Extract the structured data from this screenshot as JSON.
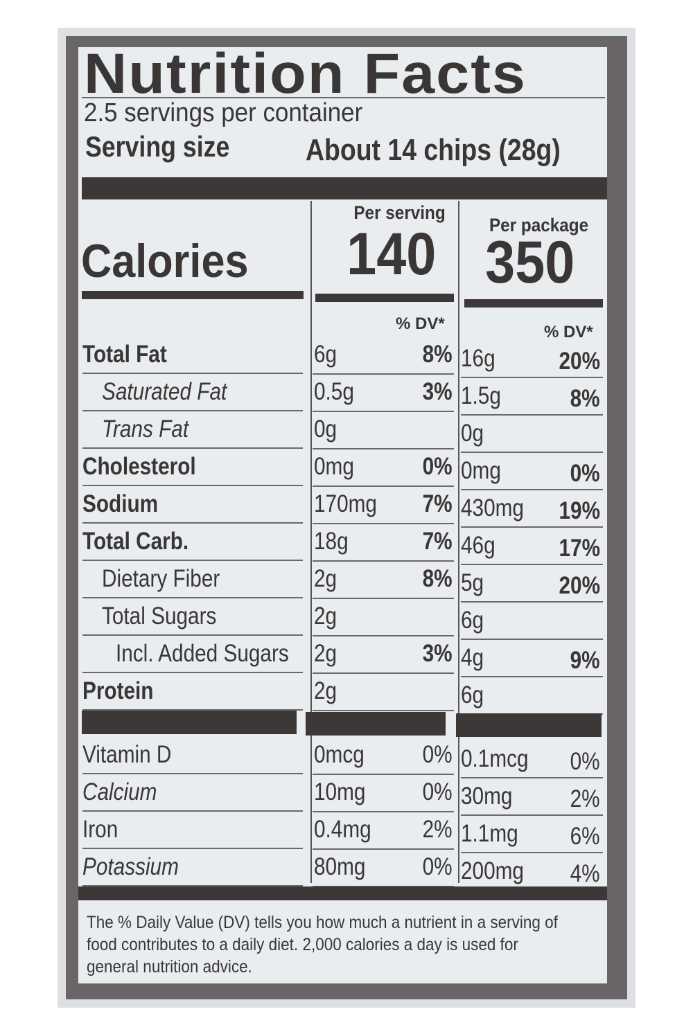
{
  "title": "Nutrition Facts",
  "servings_per_container": "2.5 servings per container",
  "serving_size_label": "Serving size",
  "serving_size_value": "About 14 chips (28g)",
  "columns": {
    "per_serving": "Per serving",
    "per_package": "Per package"
  },
  "calories": {
    "label": "Calories",
    "per_serving": "140",
    "per_package": "350"
  },
  "dv_header": "% DV*",
  "nutrients": [
    {
      "name": "Total Fat",
      "style": "bold",
      "indent": 0,
      "serving_amount": "6g",
      "serving_dv": "8%",
      "package_amount": "16g",
      "package_dv": "20%"
    },
    {
      "name": "Saturated Fat",
      "style": "italic",
      "indent": 1,
      "serving_amount": "0.5g",
      "serving_dv": "3%",
      "package_amount": "1.5g",
      "package_dv": "8%"
    },
    {
      "name": "Trans Fat",
      "style": "italic",
      "indent": 1,
      "serving_amount": "0g",
      "serving_dv": "",
      "package_amount": "0g",
      "package_dv": ""
    },
    {
      "name": "Cholesterol",
      "style": "bold",
      "indent": 0,
      "serving_amount": "0mg",
      "serving_dv": "0%",
      "package_amount": "0mg",
      "package_dv": "0%"
    },
    {
      "name": "Sodium",
      "style": "bold",
      "indent": 0,
      "serving_amount": "170mg",
      "serving_dv": "7%",
      "package_amount": "430mg",
      "package_dv": "19%"
    },
    {
      "name": "Total Carb.",
      "style": "bold",
      "indent": 0,
      "serving_amount": "18g",
      "serving_dv": "7%",
      "package_amount": "46g",
      "package_dv": "17%"
    },
    {
      "name": "Dietary Fiber",
      "style": "normal",
      "indent": 1,
      "serving_amount": "2g",
      "serving_dv": "8%",
      "package_amount": "5g",
      "package_dv": "20%"
    },
    {
      "name": "Total Sugars",
      "style": "normal",
      "indent": 1,
      "serving_amount": "2g",
      "serving_dv": "",
      "package_amount": "6g",
      "package_dv": ""
    },
    {
      "name": "Incl. Added Sugars",
      "style": "normal",
      "indent": 2,
      "serving_amount": "2g",
      "serving_dv": "3%",
      "package_amount": "4g",
      "package_dv": "9%"
    },
    {
      "name": "Protein",
      "style": "bold",
      "indent": 0,
      "serving_amount": "2g",
      "serving_dv": "",
      "package_amount": "6g",
      "package_dv": ""
    }
  ],
  "vitamins": [
    {
      "name": "Vitamin D",
      "serving_amount": "0mcg",
      "serving_dv": "0%",
      "package_amount": "0.1mcg",
      "package_dv": "0%"
    },
    {
      "name": "Calcium",
      "serving_amount": "10mg",
      "serving_dv": "0%",
      "package_amount": "30mg",
      "package_dv": "2%"
    },
    {
      "name": "Iron",
      "serving_amount": "0.4mg",
      "serving_dv": "2%",
      "package_amount": "1.1mg",
      "package_dv": "6%"
    },
    {
      "name": "Potassium",
      "serving_amount": "80mg",
      "serving_dv": "0%",
      "package_amount": "200mg",
      "package_dv": "4%"
    }
  ],
  "footnote": [
    "The % Daily Value (DV) tells you how much a nutrient in a serving of",
    "food contributes to a daily diet. 2,000 calories a day is used for",
    "general nutrition advice."
  ],
  "colors": {
    "label_bg": "#e9edf0",
    "frame": "#6a6566",
    "outer": "#dde1e4",
    "ink": "#3a3636"
  }
}
